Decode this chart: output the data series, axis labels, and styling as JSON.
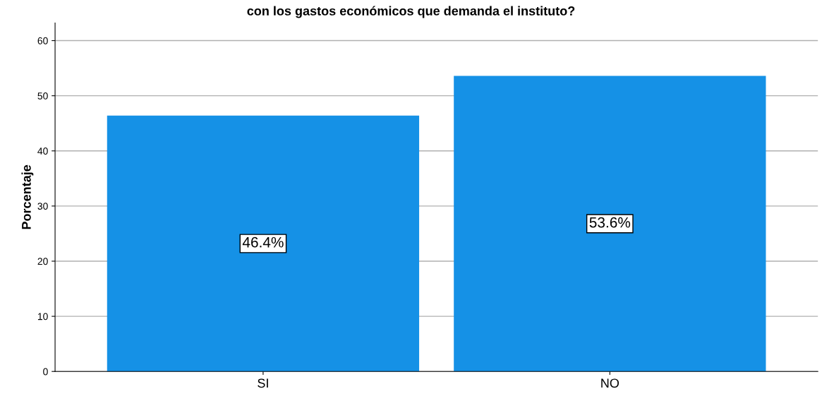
{
  "chart_data": {
    "type": "bar",
    "title": "con los gastos económicos que demanda el instituto?",
    "ylabel": "Porcentaje",
    "categories": [
      "SI",
      "NO"
    ],
    "values": [
      46.4,
      53.6
    ],
    "color": "#1591e6",
    "value_labels": [
      "46.4%",
      "53.6%"
    ],
    "ylim": [
      0,
      63.2
    ],
    "yticks": [
      0,
      10,
      20,
      30,
      40,
      50,
      60
    ],
    "grid": "y",
    "legend": false
  }
}
